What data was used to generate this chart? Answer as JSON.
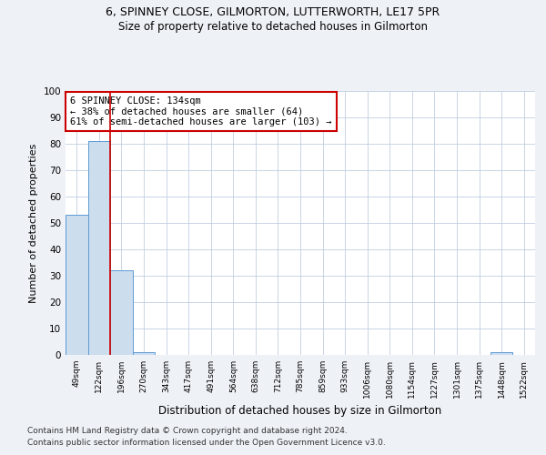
{
  "title": "6, SPINNEY CLOSE, GILMORTON, LUTTERWORTH, LE17 5PR",
  "subtitle": "Size of property relative to detached houses in Gilmorton",
  "xlabel": "Distribution of detached houses by size in Gilmorton",
  "ylabel": "Number of detached properties",
  "bin_labels": [
    "49sqm",
    "122sqm",
    "196sqm",
    "270sqm",
    "343sqm",
    "417sqm",
    "491sqm",
    "564sqm",
    "638sqm",
    "712sqm",
    "785sqm",
    "859sqm",
    "933sqm",
    "1006sqm",
    "1080sqm",
    "1154sqm",
    "1227sqm",
    "1301sqm",
    "1375sqm",
    "1448sqm",
    "1522sqm"
  ],
  "bin_values": [
    53,
    81,
    32,
    1,
    0,
    0,
    0,
    0,
    0,
    0,
    0,
    0,
    0,
    0,
    0,
    0,
    0,
    0,
    0,
    1,
    0
  ],
  "bar_color": "#ccdded",
  "bar_edge_color": "#5b9bd5",
  "property_line_color": "#cc0000",
  "annotation_text": "6 SPINNEY CLOSE: 134sqm\n← 38% of detached houses are smaller (64)\n61% of semi-detached houses are larger (103) →",
  "annotation_box_color": "#ffffff",
  "annotation_box_edge": "#cc0000",
  "ylim": [
    0,
    100
  ],
  "yticks": [
    0,
    10,
    20,
    30,
    40,
    50,
    60,
    70,
    80,
    90,
    100
  ],
  "grid_color": "#c0cfe0",
  "footnote1": "Contains HM Land Registry data © Crown copyright and database right 2024.",
  "footnote2": "Contains public sector information licensed under the Open Government Licence v3.0.",
  "bg_color": "#eef2f7",
  "plot_bg_color": "#ffffff",
  "title_fontsize": 9,
  "subtitle_fontsize": 8.5,
  "xlabel_fontsize": 8.5,
  "ylabel_fontsize": 8,
  "footnote_fontsize": 6.5
}
